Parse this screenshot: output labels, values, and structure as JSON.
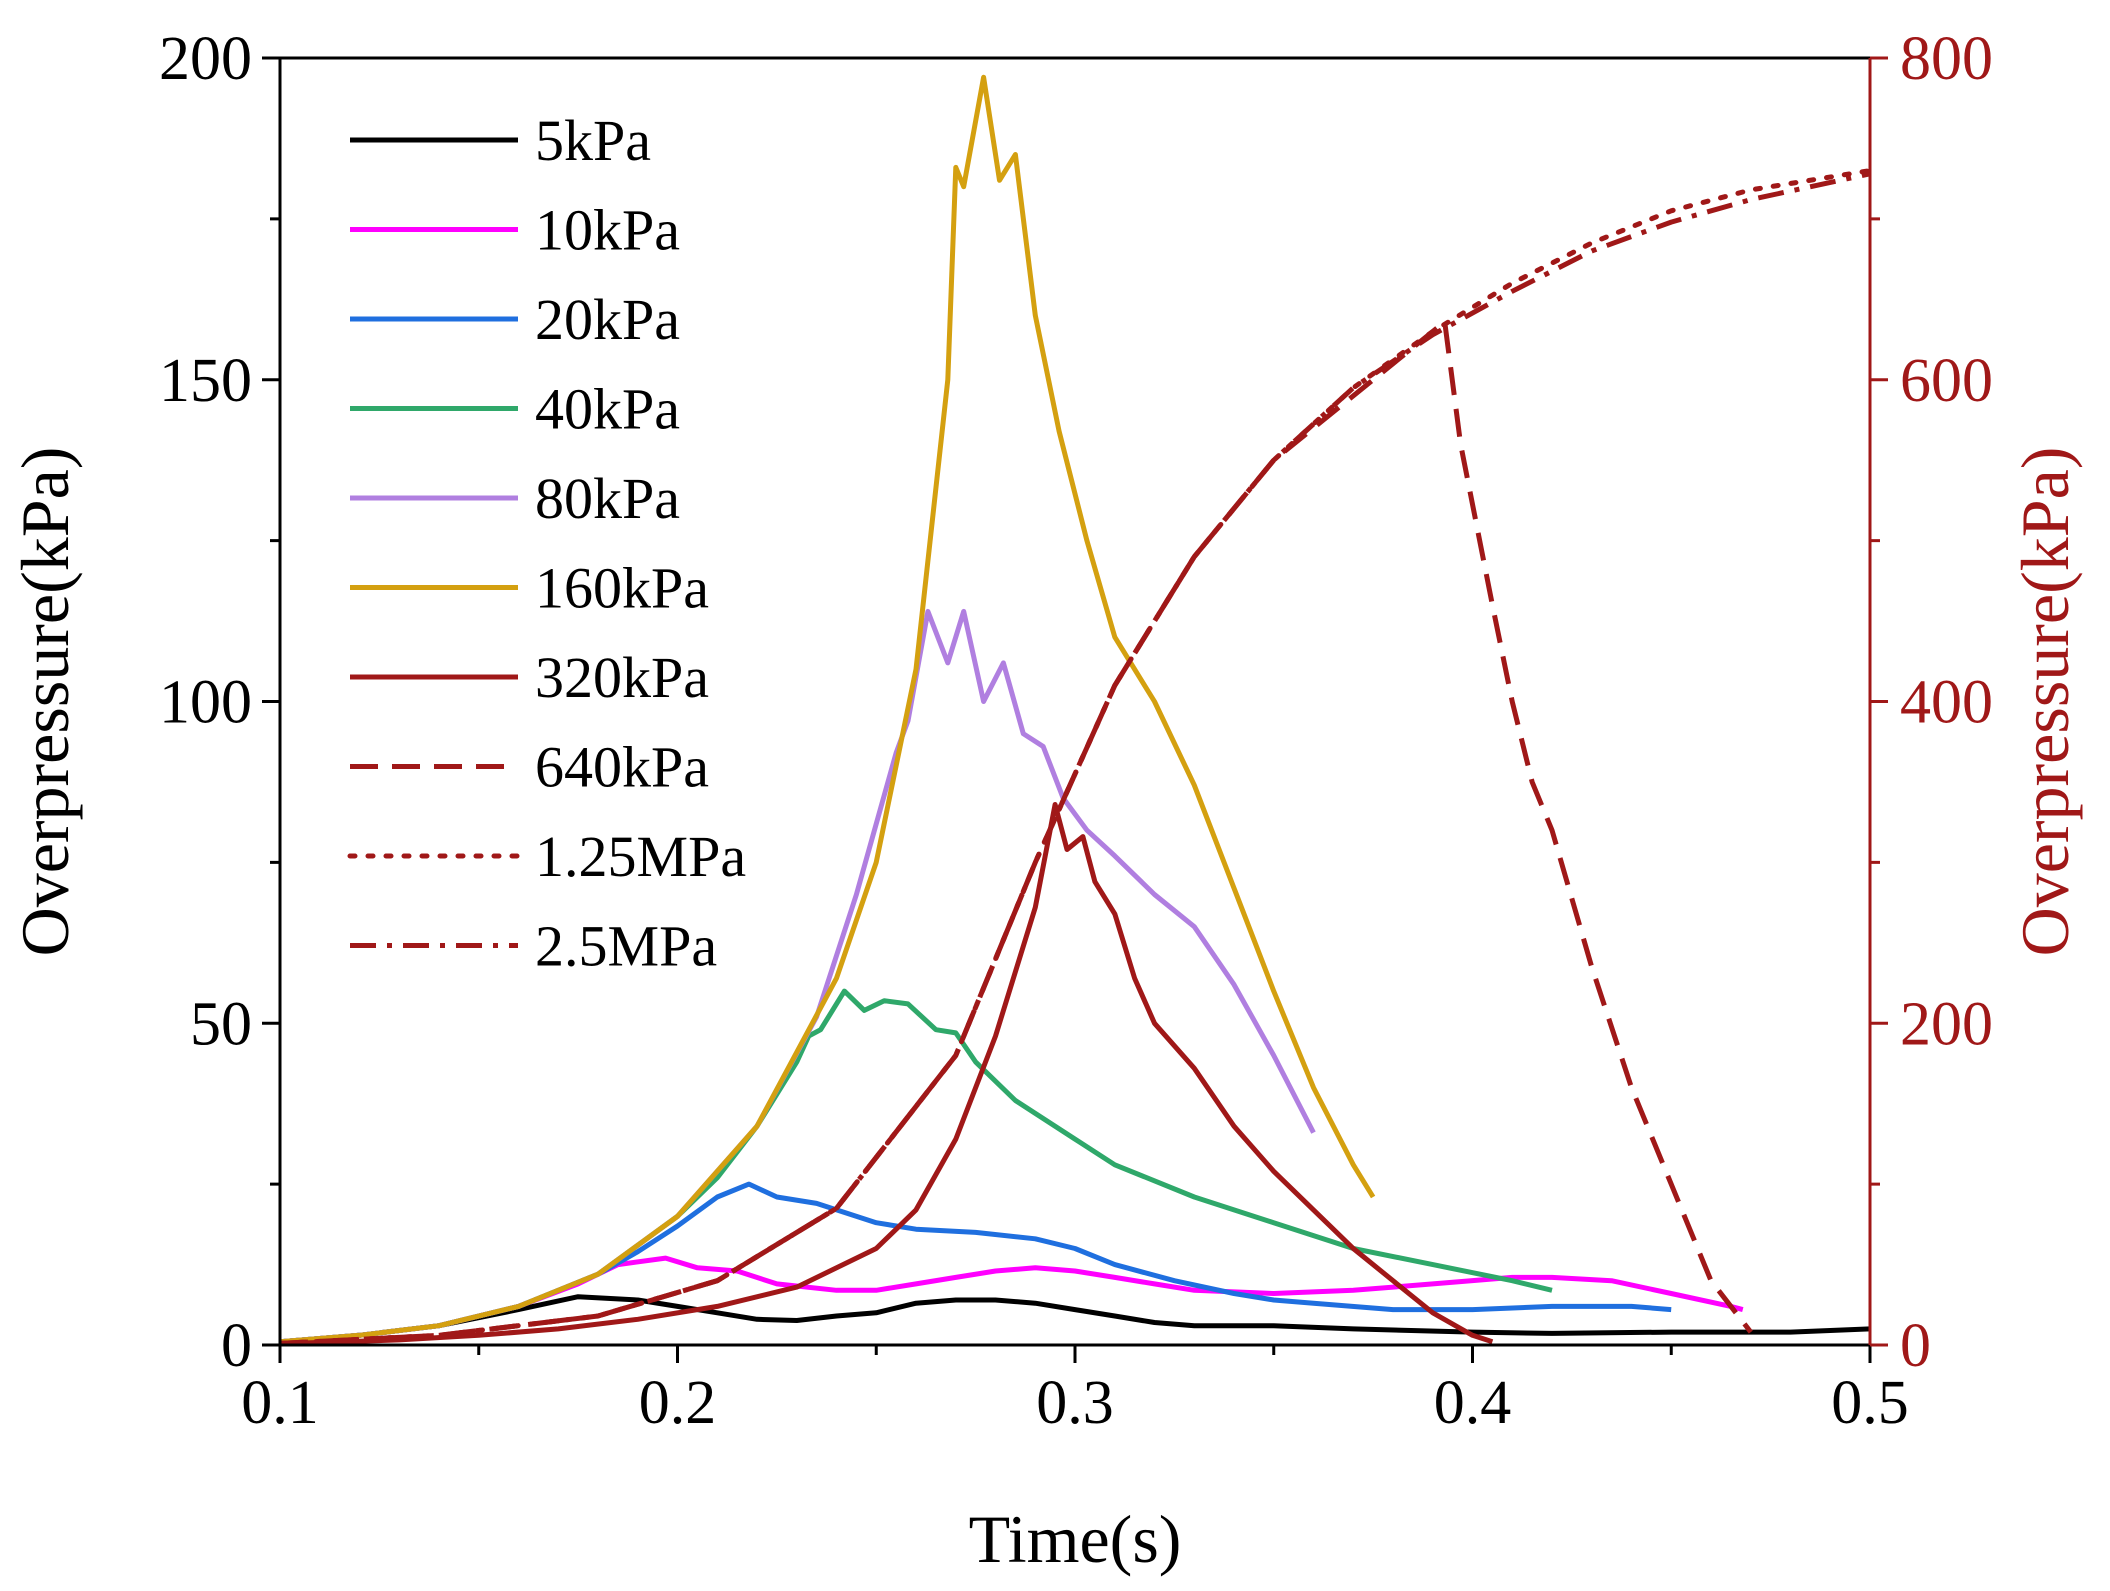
{
  "chart_data": {
    "type": "line",
    "xlabel": "Time(s)",
    "ylabel": "Overpressure(kPa)",
    "y2label": "Overpressure(kPa)",
    "xlim": [
      0.1,
      0.5
    ],
    "ylim": [
      0,
      200
    ],
    "y2lim": [
      0,
      800
    ],
    "x_ticks": [
      0.1,
      0.2,
      0.3,
      0.4,
      0.5
    ],
    "x_tick_labels": [
      "0.1",
      "0.2",
      "0.3",
      "0.4",
      "0.5"
    ],
    "y_ticks": [
      0,
      50,
      100,
      150,
      200
    ],
    "y_tick_labels": [
      "0",
      "50",
      "100",
      "150",
      "200"
    ],
    "y2_ticks": [
      0,
      200,
      400,
      600,
      800
    ],
    "y2_tick_labels": [
      "0",
      "200",
      "400",
      "600",
      "800"
    ],
    "legend_position": "top-left",
    "colors": {
      "right_axis": "#a01818"
    },
    "series": [
      {
        "name": "5kPa",
        "color": "#000000",
        "dash": "solid",
        "axis": "left",
        "points": [
          [
            0.1,
            0.5
          ],
          [
            0.12,
            1.5
          ],
          [
            0.14,
            3
          ],
          [
            0.16,
            5.5
          ],
          [
            0.175,
            7.5
          ],
          [
            0.19,
            7
          ],
          [
            0.2,
            6
          ],
          [
            0.21,
            5
          ],
          [
            0.22,
            4
          ],
          [
            0.23,
            3.8
          ],
          [
            0.24,
            4.5
          ],
          [
            0.25,
            5
          ],
          [
            0.26,
            6.5
          ],
          [
            0.27,
            7
          ],
          [
            0.28,
            7
          ],
          [
            0.29,
            6.5
          ],
          [
            0.3,
            5.5
          ],
          [
            0.31,
            4.5
          ],
          [
            0.32,
            3.5
          ],
          [
            0.33,
            3
          ],
          [
            0.35,
            3
          ],
          [
            0.37,
            2.5
          ],
          [
            0.4,
            2
          ],
          [
            0.42,
            1.8
          ],
          [
            0.45,
            2
          ],
          [
            0.48,
            2
          ],
          [
            0.5,
            2.5
          ]
        ]
      },
      {
        "name": "10kPa",
        "color": "#ff00ff",
        "dash": "solid",
        "axis": "left",
        "points": [
          [
            0.1,
            0.5
          ],
          [
            0.12,
            1.5
          ],
          [
            0.14,
            3
          ],
          [
            0.16,
            6
          ],
          [
            0.175,
            9.5
          ],
          [
            0.185,
            12.5
          ],
          [
            0.197,
            13.5
          ],
          [
            0.205,
            12
          ],
          [
            0.215,
            11.5
          ],
          [
            0.225,
            9.5
          ],
          [
            0.24,
            8.5
          ],
          [
            0.25,
            8.5
          ],
          [
            0.26,
            9.5
          ],
          [
            0.27,
            10.5
          ],
          [
            0.28,
            11.5
          ],
          [
            0.29,
            12
          ],
          [
            0.3,
            11.5
          ],
          [
            0.31,
            10.5
          ],
          [
            0.32,
            9.5
          ],
          [
            0.33,
            8.5
          ],
          [
            0.35,
            8
          ],
          [
            0.37,
            8.5
          ],
          [
            0.39,
            9.5
          ],
          [
            0.41,
            10.5
          ],
          [
            0.42,
            10.5
          ],
          [
            0.435,
            10
          ],
          [
            0.45,
            8
          ],
          [
            0.465,
            6
          ],
          [
            0.468,
            5.5
          ]
        ]
      },
      {
        "name": "20kPa",
        "color": "#1f6fdf",
        "dash": "solid",
        "axis": "left",
        "points": [
          [
            0.1,
            0.5
          ],
          [
            0.12,
            1.5
          ],
          [
            0.14,
            3
          ],
          [
            0.16,
            6
          ],
          [
            0.18,
            11
          ],
          [
            0.19,
            14.5
          ],
          [
            0.2,
            18.5
          ],
          [
            0.21,
            23
          ],
          [
            0.218,
            25
          ],
          [
            0.225,
            23
          ],
          [
            0.235,
            22
          ],
          [
            0.25,
            19
          ],
          [
            0.26,
            18
          ],
          [
            0.275,
            17.5
          ],
          [
            0.29,
            16.5
          ],
          [
            0.3,
            15
          ],
          [
            0.31,
            12.5
          ],
          [
            0.325,
            10
          ],
          [
            0.34,
            8
          ],
          [
            0.35,
            7
          ],
          [
            0.36,
            6.5
          ],
          [
            0.38,
            5.5
          ],
          [
            0.4,
            5.5
          ],
          [
            0.42,
            6
          ],
          [
            0.44,
            6
          ],
          [
            0.45,
            5.5
          ]
        ]
      },
      {
        "name": "40kPa",
        "color": "#2fa86a",
        "dash": "solid",
        "axis": "left",
        "points": [
          [
            0.1,
            0.5
          ],
          [
            0.12,
            1.5
          ],
          [
            0.14,
            3
          ],
          [
            0.16,
            6
          ],
          [
            0.18,
            11
          ],
          [
            0.2,
            20
          ],
          [
            0.21,
            26
          ],
          [
            0.22,
            34
          ],
          [
            0.23,
            44
          ],
          [
            0.233,
            48
          ],
          [
            0.236,
            49
          ],
          [
            0.242,
            55
          ],
          [
            0.247,
            52
          ],
          [
            0.252,
            53.5
          ],
          [
            0.258,
            53
          ],
          [
            0.265,
            49
          ],
          [
            0.27,
            48.5
          ],
          [
            0.275,
            44
          ],
          [
            0.285,
            38
          ],
          [
            0.3,
            32
          ],
          [
            0.31,
            28
          ],
          [
            0.33,
            23
          ],
          [
            0.35,
            19
          ],
          [
            0.37,
            15
          ],
          [
            0.39,
            12.5
          ],
          [
            0.41,
            10
          ],
          [
            0.42,
            8.5
          ]
        ]
      },
      {
        "name": "80kPa",
        "color": "#b07fe0",
        "dash": "solid",
        "axis": "left",
        "points": [
          [
            0.1,
            0.5
          ],
          [
            0.12,
            1.5
          ],
          [
            0.14,
            3
          ],
          [
            0.16,
            6
          ],
          [
            0.18,
            11
          ],
          [
            0.2,
            20
          ],
          [
            0.22,
            34
          ],
          [
            0.235,
            51
          ],
          [
            0.245,
            70
          ],
          [
            0.255,
            92
          ],
          [
            0.258,
            97
          ],
          [
            0.263,
            114
          ],
          [
            0.268,
            106
          ],
          [
            0.272,
            114
          ],
          [
            0.277,
            100
          ],
          [
            0.282,
            106
          ],
          [
            0.287,
            95
          ],
          [
            0.292,
            93
          ],
          [
            0.297,
            85
          ],
          [
            0.303,
            80
          ],
          [
            0.31,
            76
          ],
          [
            0.32,
            70
          ],
          [
            0.33,
            65
          ],
          [
            0.34,
            56
          ],
          [
            0.35,
            45
          ],
          [
            0.36,
            33
          ]
        ]
      },
      {
        "name": "160kPa",
        "color": "#d4a010",
        "dash": "solid",
        "axis": "left",
        "points": [
          [
            0.1,
            0.5
          ],
          [
            0.12,
            1.5
          ],
          [
            0.14,
            3
          ],
          [
            0.16,
            6
          ],
          [
            0.18,
            11
          ],
          [
            0.2,
            20
          ],
          [
            0.22,
            34
          ],
          [
            0.24,
            57
          ],
          [
            0.25,
            75
          ],
          [
            0.26,
            105
          ],
          [
            0.268,
            150
          ],
          [
            0.27,
            183
          ],
          [
            0.272,
            180
          ],
          [
            0.277,
            197
          ],
          [
            0.281,
            181
          ],
          [
            0.285,
            185
          ],
          [
            0.29,
            160
          ],
          [
            0.296,
            142
          ],
          [
            0.303,
            125
          ],
          [
            0.31,
            110
          ],
          [
            0.32,
            100
          ],
          [
            0.33,
            87
          ],
          [
            0.34,
            71
          ],
          [
            0.35,
            55
          ],
          [
            0.36,
            40
          ],
          [
            0.37,
            28
          ],
          [
            0.375,
            23
          ]
        ]
      },
      {
        "name": "320kPa",
        "color": "#a01818",
        "dash": "solid",
        "axis": "left",
        "points": [
          [
            0.1,
            0.2
          ],
          [
            0.13,
            0.8
          ],
          [
            0.15,
            1.5
          ],
          [
            0.17,
            2.5
          ],
          [
            0.19,
            4
          ],
          [
            0.21,
            6
          ],
          [
            0.23,
            9
          ],
          [
            0.25,
            15
          ],
          [
            0.26,
            21
          ],
          [
            0.27,
            32
          ],
          [
            0.28,
            48
          ],
          [
            0.29,
            68
          ],
          [
            0.295,
            84
          ],
          [
            0.298,
            77
          ],
          [
            0.302,
            79
          ],
          [
            0.305,
            72
          ],
          [
            0.31,
            67
          ],
          [
            0.315,
            57
          ],
          [
            0.32,
            50
          ],
          [
            0.33,
            43
          ],
          [
            0.34,
            34
          ],
          [
            0.35,
            27
          ],
          [
            0.36,
            21
          ],
          [
            0.37,
            15
          ],
          [
            0.38,
            10
          ],
          [
            0.39,
            5
          ],
          [
            0.4,
            1.5
          ],
          [
            0.405,
            0.5
          ]
        ]
      },
      {
        "name": "640kPa",
        "color": "#a01818",
        "dash": "dashed",
        "axis": "right",
        "points": [
          [
            0.1,
            1
          ],
          [
            0.14,
            6
          ],
          [
            0.18,
            18
          ],
          [
            0.21,
            40
          ],
          [
            0.24,
            85
          ],
          [
            0.27,
            180
          ],
          [
            0.29,
            300
          ],
          [
            0.31,
            410
          ],
          [
            0.33,
            490
          ],
          [
            0.35,
            550
          ],
          [
            0.37,
            590
          ],
          [
            0.39,
            630
          ],
          [
            0.393,
            636
          ],
          [
            0.397,
            560
          ],
          [
            0.405,
            460
          ],
          [
            0.41,
            400
          ],
          [
            0.415,
            350
          ],
          [
            0.42,
            320
          ],
          [
            0.43,
            235
          ],
          [
            0.44,
            160
          ],
          [
            0.45,
            100
          ],
          [
            0.46,
            40
          ],
          [
            0.47,
            8
          ]
        ]
      },
      {
        "name": "1.25MPa",
        "color": "#a01818",
        "dash": "dotted",
        "axis": "right",
        "points": [
          [
            0.1,
            1
          ],
          [
            0.14,
            6
          ],
          [
            0.18,
            18
          ],
          [
            0.21,
            40
          ],
          [
            0.24,
            85
          ],
          [
            0.27,
            180
          ],
          [
            0.29,
            300
          ],
          [
            0.31,
            410
          ],
          [
            0.33,
            490
          ],
          [
            0.35,
            550
          ],
          [
            0.37,
            595
          ],
          [
            0.39,
            630
          ],
          [
            0.41,
            660
          ],
          [
            0.43,
            685
          ],
          [
            0.45,
            705
          ],
          [
            0.47,
            718
          ],
          [
            0.5,
            730
          ]
        ]
      },
      {
        "name": "2.5MPa",
        "color": "#a01818",
        "dash": "dashdot",
        "axis": "right",
        "points": [
          [
            0.1,
            1
          ],
          [
            0.14,
            6
          ],
          [
            0.18,
            18
          ],
          [
            0.21,
            40
          ],
          [
            0.24,
            85
          ],
          [
            0.27,
            180
          ],
          [
            0.29,
            300
          ],
          [
            0.31,
            410
          ],
          [
            0.33,
            490
          ],
          [
            0.35,
            550
          ],
          [
            0.37,
            595
          ],
          [
            0.39,
            628
          ],
          [
            0.41,
            655
          ],
          [
            0.43,
            680
          ],
          [
            0.45,
            698
          ],
          [
            0.47,
            712
          ],
          [
            0.5,
            728
          ]
        ]
      }
    ]
  }
}
